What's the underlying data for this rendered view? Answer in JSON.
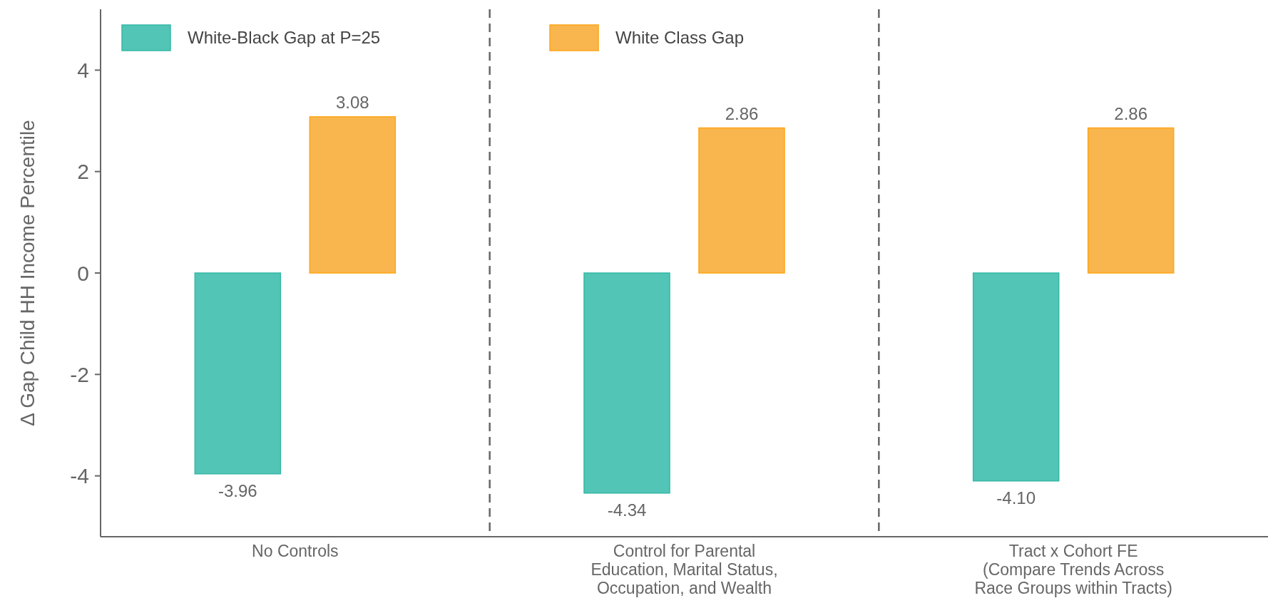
{
  "chart_data": {
    "type": "bar",
    "ylabel": "Δ Gap Child HH Income Percentile",
    "categories": [
      "No Controls",
      "Control for Parental\nEducation, Marital Status,\nOccupation, and Wealth",
      "Tract x Cohort FE\n(Compare Trends Across\nRace Groups within Tracts)"
    ],
    "series": [
      {
        "name": "White-Black Gap at P=25",
        "color": "#52c5b6",
        "values": [
          -3.96,
          -4.34,
          -4.1
        ],
        "value_labels": [
          "-3.96",
          "-4.34",
          "-4.10"
        ]
      },
      {
        "name": "White Class Gap",
        "color": "#f9b64e",
        "values": [
          3.08,
          2.86,
          2.86
        ],
        "value_labels": [
          "3.08",
          "2.86",
          "2.86"
        ]
      }
    ],
    "ylim": [
      -5.2,
      5.2
    ],
    "yticks": [
      -4,
      -2,
      0,
      2,
      4
    ],
    "legend": "top left",
    "grid": false
  }
}
